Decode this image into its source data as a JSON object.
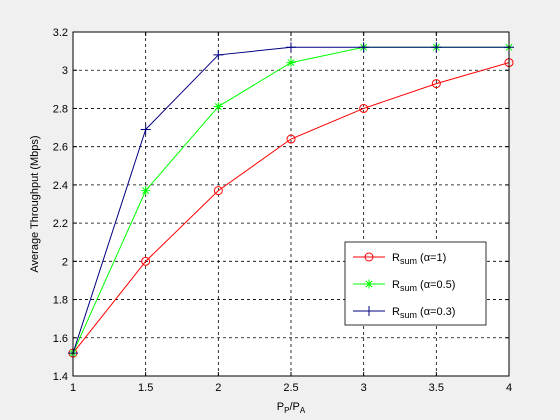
{
  "chart_data": {
    "type": "line",
    "title": "",
    "xlabel": {
      "main": "P",
      "sub1": "P",
      "mid": "/P",
      "sub2": "A"
    },
    "ylabel": "Average Throughput (Mbps)",
    "xlim": [
      1,
      4
    ],
    "ylim": [
      1.4,
      3.2
    ],
    "xticks": [
      1,
      1.5,
      2,
      2.5,
      3,
      3.5,
      4
    ],
    "xtick_labels": [
      "1",
      "1.5",
      "2",
      "2.5",
      "3",
      "3.5",
      "4"
    ],
    "yticks": [
      1.4,
      1.6,
      1.8,
      2.0,
      2.2,
      2.4,
      2.6,
      2.8,
      3.0,
      3.2
    ],
    "ytick_labels": [
      "1.4",
      "1.6",
      "1.8",
      "2",
      "2.2",
      "2.4",
      "2.6",
      "2.8",
      "3",
      "3.2"
    ],
    "grid": true,
    "legend_position": "right",
    "x": [
      1,
      1.5,
      2,
      2.5,
      3,
      3.5,
      4
    ],
    "series": [
      {
        "name": "Rsum (α=1)",
        "label_main": "R",
        "label_sub": "sum",
        "label_rest": " (α=1)",
        "color": "#ff0000",
        "marker": "circle",
        "values": [
          1.52,
          2.0,
          2.37,
          2.64,
          2.8,
          2.93,
          3.04
        ]
      },
      {
        "name": "Rsum (α=0.5)",
        "label_main": "R",
        "label_sub": "sum",
        "label_rest": " (α=0.5)",
        "color": "#00ff00",
        "marker": "star",
        "values": [
          1.52,
          2.37,
          2.81,
          3.04,
          3.12,
          3.12,
          3.12
        ]
      },
      {
        "name": "Rsum (α=0.3)",
        "label_main": "R",
        "label_sub": "sum",
        "label_rest": " (α=0.3)",
        "color": "#000080",
        "marker": "plus",
        "values": [
          1.52,
          2.69,
          3.08,
          3.12,
          3.12,
          3.12,
          3.12
        ]
      }
    ]
  }
}
